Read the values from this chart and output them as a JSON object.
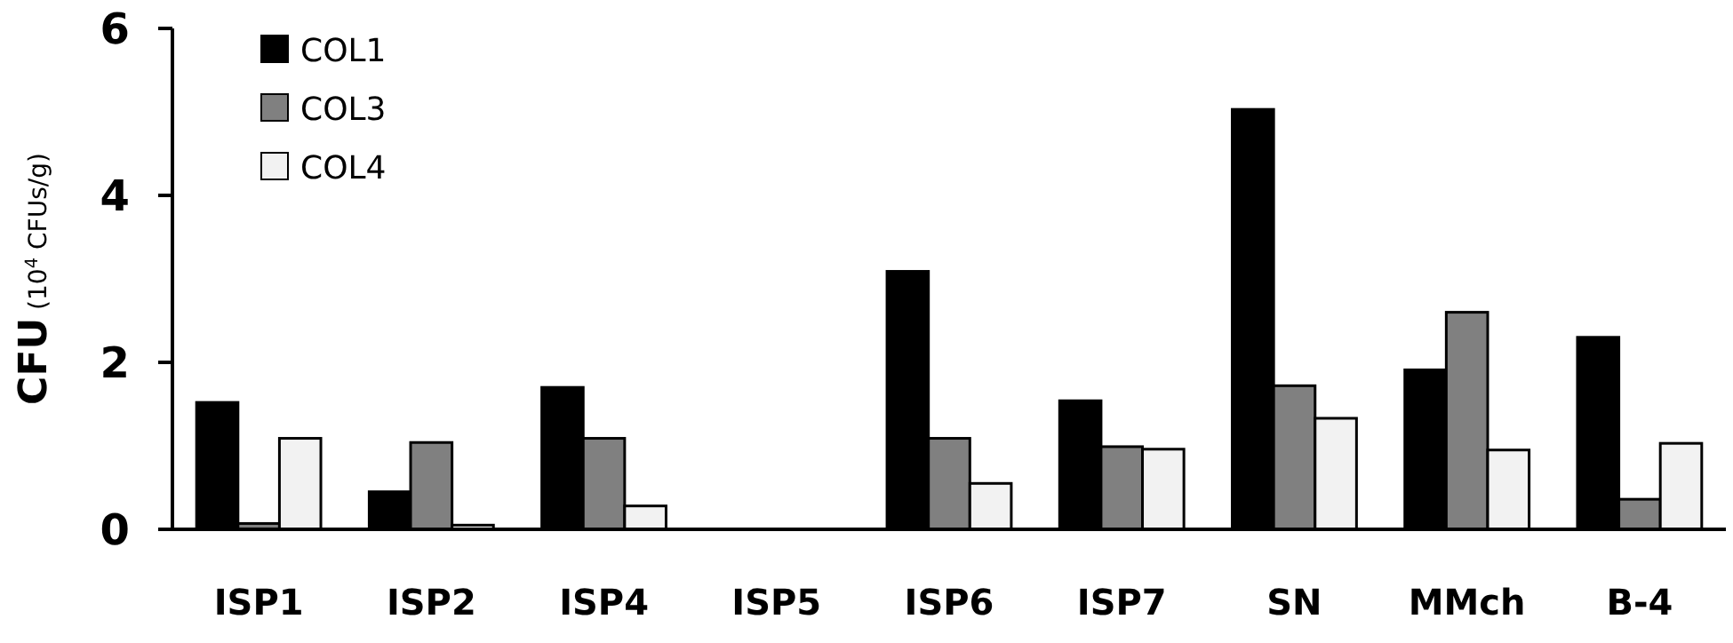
{
  "chart_data": {
    "type": "bar",
    "ylabel": "CFU (10$^{4}$ CFUs/g)",
    "categories": [
      "ISP1",
      "ISP2",
      "ISP4",
      "ISP5",
      "ISP6",
      "ISP7",
      "SN",
      "MMch",
      "B-4"
    ],
    "series": [
      {
        "name": "COL1",
        "color": "#000000",
        "values": [
          1.52,
          0.45,
          1.7,
          0,
          3.09,
          1.54,
          5.03,
          1.91,
          2.3
        ]
      },
      {
        "name": "COL3",
        "color": "#808080",
        "values": [
          0.07,
          1.04,
          1.09,
          0,
          1.09,
          0.99,
          1.72,
          2.6,
          0.36
        ]
      },
      {
        "name": "COL4",
        "color": "#f2f2f2",
        "values": [
          1.09,
          0.05,
          0.28,
          0,
          0.55,
          0.96,
          1.33,
          0.95,
          1.03
        ]
      }
    ],
    "ylim": [
      0,
      6
    ],
    "yticks": [
      0,
      2,
      4,
      6
    ],
    "grid": false,
    "legend": "top left"
  }
}
